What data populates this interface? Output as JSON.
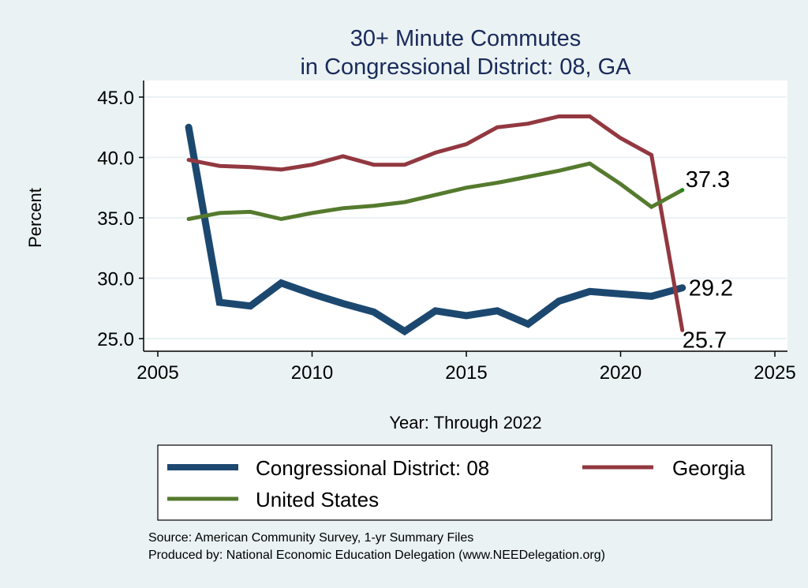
{
  "chart_data": {
    "type": "line",
    "title": [
      "30+ Minute Commutes",
      "in Congressional District:  08, GA"
    ],
    "xlabel": "Year: Through 2022",
    "ylabel": "Percent",
    "xlim": [
      2005,
      2025
    ],
    "ylim": [
      25,
      45
    ],
    "xticks": [
      2005,
      2010,
      2015,
      2020,
      2025
    ],
    "xtick_labels": [
      "2005",
      "2010",
      "2015",
      "2020",
      "2025"
    ],
    "yticks": [
      25,
      30,
      35,
      40,
      45
    ],
    "ytick_labels": [
      "25.0",
      "30.0",
      "35.0",
      "40.0",
      "45.0"
    ],
    "grid": true,
    "x": [
      2006,
      2007,
      2008,
      2009,
      2010,
      2011,
      2012,
      2013,
      2014,
      2015,
      2016,
      2017,
      2018,
      2019,
      2020,
      2021,
      2022
    ],
    "series": [
      {
        "name": "Congressional District:  08",
        "color": "#1c4870",
        "values": [
          42.5,
          28.0,
          27.7,
          29.6,
          28.7,
          27.9,
          27.2,
          25.6,
          27.3,
          26.9,
          27.3,
          26.2,
          28.1,
          28.9,
          28.7,
          28.5,
          29.2
        ],
        "end_label": "29.2"
      },
      {
        "name": "Georgia",
        "color": "#923840",
        "values": [
          39.8,
          39.3,
          39.2,
          39.0,
          39.4,
          40.1,
          39.4,
          39.4,
          40.4,
          41.1,
          42.5,
          42.8,
          43.4,
          43.4,
          41.6,
          40.2,
          25.7
        ],
        "end_label": "25.7"
      },
      {
        "name": "United States",
        "color": "#557a2e",
        "values": [
          34.9,
          35.4,
          35.5,
          34.9,
          35.4,
          35.8,
          36.0,
          36.3,
          36.9,
          37.5,
          37.9,
          38.4,
          38.9,
          39.5,
          37.8,
          35.9,
          37.3
        ],
        "end_label": "37.3"
      }
    ],
    "legend_position": "bottom",
    "notes": [
      "Source: American Community Survey, 1-yr Summary Files",
      "Produced by: National Economic Education Delegation (www.NEEDelegation.org)"
    ]
  }
}
